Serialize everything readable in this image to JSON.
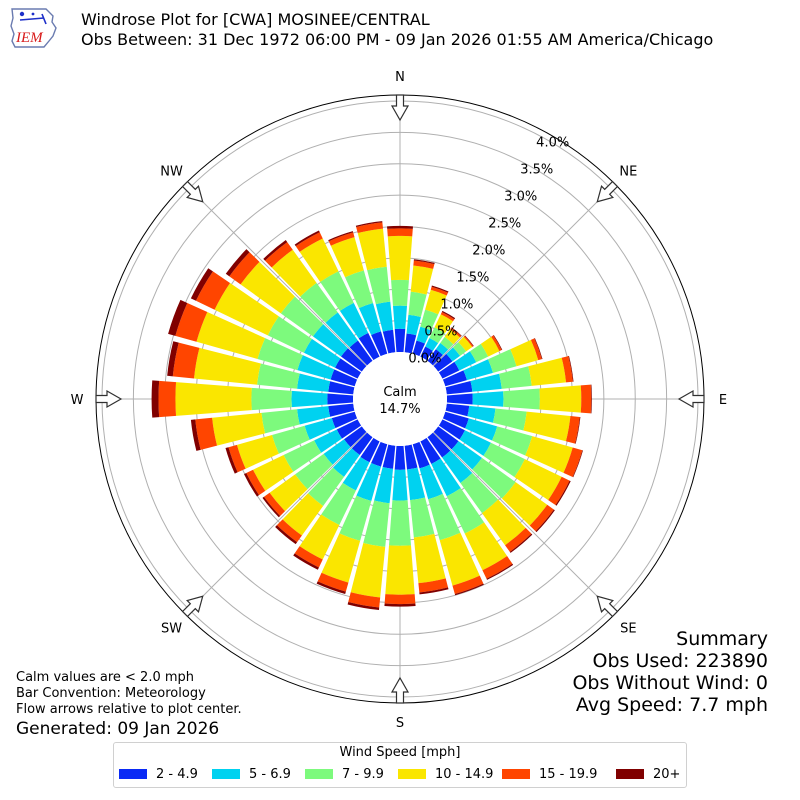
{
  "header": {
    "title_line1": "Windrose Plot for [CWA] MOSINEE/CENTRAL",
    "title_line2": "Obs Between: 31 Dec 1972 06:00 PM - 09 Jan 2026 01:55 AM America/Chicago",
    "logo_text": "IEM"
  },
  "summary": {
    "title": "Summary",
    "obs_used": "Obs Used: 223890",
    "obs_without_wind": "Obs Without Wind: 0",
    "avg_speed": "Avg Speed: 7.7 mph"
  },
  "notes": {
    "calm_def": "Calm values are < 2.0 mph",
    "bar_convention": "Bar Convention: Meteorology",
    "flow_arrows": "Flow arrows relative to plot center.",
    "generated": "Generated: 09 Jan 2026"
  },
  "legend": {
    "title": "Wind Speed [mph]",
    "items": [
      {
        "label": "2 - 4.9",
        "color": "#0a2af5"
      },
      {
        "label": "5 - 6.9",
        "color": "#00d2f0"
      },
      {
        "label": "7 - 9.9",
        "color": "#7dfa7d"
      },
      {
        "label": "10 - 14.9",
        "color": "#fae600"
      },
      {
        "label": "15 - 19.9",
        "color": "#ff4500"
      },
      {
        "label": "20+",
        "color": "#800000"
      }
    ]
  },
  "chart_data": {
    "type": "windrose",
    "calm_label": "Calm",
    "calm_value": "14.7%",
    "directions": [
      0,
      10,
      20,
      30,
      40,
      50,
      60,
      70,
      80,
      90,
      100,
      110,
      120,
      130,
      140,
      150,
      160,
      170,
      180,
      190,
      200,
      210,
      220,
      230,
      240,
      250,
      260,
      270,
      280,
      290,
      300,
      310,
      320,
      330,
      340,
      350
    ],
    "compass_labels": [
      "N",
      "NE",
      "E",
      "SE",
      "S",
      "SW",
      "W",
      "NW"
    ],
    "radial_ticks": [
      "0.0%",
      "0.5%",
      "1.0%",
      "1.5%",
      "2.0%",
      "2.5%",
      "3.0%",
      "3.5%",
      "4.0%"
    ],
    "rlim": [
      0,
      4.0
    ],
    "series": [
      {
        "name": "2 - 4.9",
        "values": [
          0.37,
          0.3,
          0.22,
          0.18,
          0.23,
          0.28,
          0.3,
          0.36,
          0.41,
          0.41,
          0.36,
          0.39,
          0.4,
          0.4,
          0.4,
          0.4,
          0.4,
          0.38,
          0.38,
          0.37,
          0.37,
          0.37,
          0.35,
          0.35,
          0.37,
          0.38,
          0.4,
          0.41,
          0.4,
          0.4,
          0.4,
          0.41,
          0.4,
          0.42,
          0.37,
          0.36
        ]
      },
      {
        "name": "5 - 6.9",
        "values": [
          0.37,
          0.3,
          0.23,
          0.15,
          0.12,
          0.15,
          0.3,
          0.43,
          0.47,
          0.49,
          0.42,
          0.47,
          0.46,
          0.46,
          0.5,
          0.57,
          0.51,
          0.49,
          0.49,
          0.55,
          0.57,
          0.5,
          0.43,
          0.4,
          0.4,
          0.45,
          0.5,
          0.57,
          0.5,
          0.55,
          0.55,
          0.55,
          0.55,
          0.53,
          0.47,
          0.45
        ]
      },
      {
        "name": "7 - 9.9",
        "values": [
          0.41,
          0.37,
          0.28,
          0.19,
          0.12,
          0.12,
          0.21,
          0.39,
          0.48,
          0.58,
          0.5,
          0.58,
          0.6,
          0.66,
          0.59,
          0.66,
          0.68,
          0.6,
          0.72,
          0.7,
          0.66,
          0.61,
          0.57,
          0.56,
          0.54,
          0.54,
          0.57,
          0.64,
          0.64,
          0.66,
          0.64,
          0.63,
          0.58,
          0.56,
          0.54,
          0.56
        ]
      },
      {
        "name": "10 - 14.9",
        "values": [
          0.7,
          0.42,
          0.33,
          0.23,
          0.15,
          0.12,
          0.2,
          0.36,
          0.55,
          0.66,
          0.7,
          0.67,
          0.65,
          0.62,
          0.63,
          0.65,
          0.75,
          0.73,
          0.78,
          0.81,
          0.69,
          0.61,
          0.58,
          0.5,
          0.54,
          0.58,
          0.79,
          1.21,
          1.01,
          1.01,
          0.94,
          0.79,
          0.65,
          0.58,
          0.55,
          0.61
        ]
      },
      {
        "name": "15 - 19.9",
        "values": [
          0.12,
          0.08,
          0.05,
          0.04,
          0.03,
          0.02,
          0.04,
          0.06,
          0.11,
          0.16,
          0.15,
          0.16,
          0.14,
          0.13,
          0.13,
          0.15,
          0.14,
          0.15,
          0.15,
          0.16,
          0.15,
          0.14,
          0.13,
          0.11,
          0.12,
          0.14,
          0.27,
          0.27,
          0.34,
          0.35,
          0.33,
          0.22,
          0.15,
          0.11,
          0.08,
          0.1
        ]
      },
      {
        "name": "20+",
        "values": [
          0.04,
          0.02,
          0.02,
          0.02,
          0.01,
          0.01,
          0.01,
          0.01,
          0.01,
          0.01,
          0.01,
          0.01,
          0.02,
          0.02,
          0.02,
          0.02,
          0.02,
          0.03,
          0.04,
          0.04,
          0.04,
          0.04,
          0.04,
          0.03,
          0.04,
          0.05,
          0.07,
          0.11,
          0.09,
          0.12,
          0.09,
          0.07,
          0.04,
          0.03,
          0.02,
          0.02
        ]
      }
    ],
    "grid": true,
    "legend_position": "bottom"
  }
}
